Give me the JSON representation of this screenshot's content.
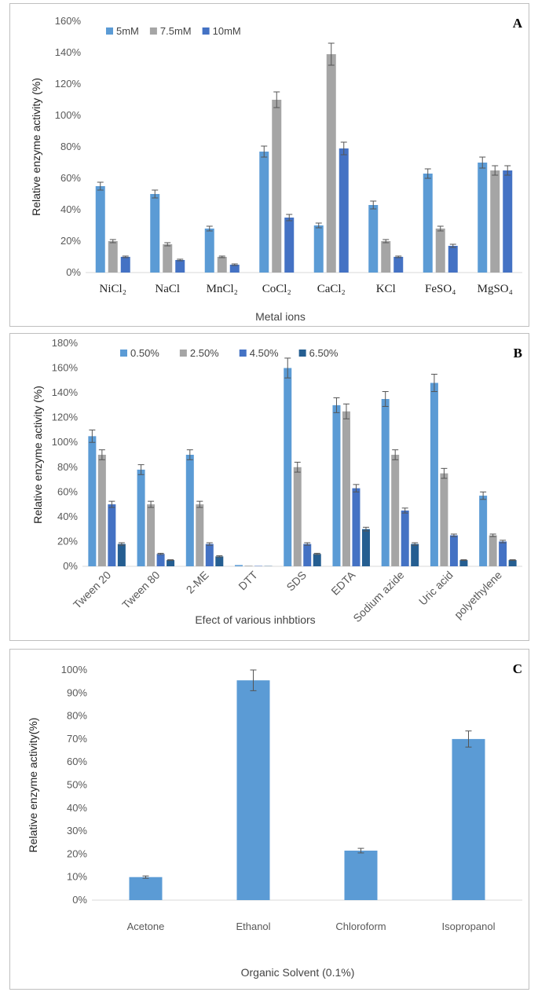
{
  "colors": {
    "light_blue": "#5b9bd5",
    "gray": "#a5a5a5",
    "blue": "#4472c4",
    "dark_blue": "#255e91",
    "axis": "#d9d9d9",
    "error": "#555555"
  },
  "chart_data": [
    {
      "id": "A",
      "panel_label": "A",
      "type": "bar",
      "title": "",
      "xlabel": "Metal ions",
      "ylabel": "Relative enzyme activity (%)",
      "ylim": [
        0,
        160
      ],
      "yticks": [
        0,
        20,
        40,
        60,
        80,
        100,
        120,
        140,
        160
      ],
      "ytick_labels": [
        "0%",
        "20%",
        "40%",
        "60%",
        "80%",
        "100%",
        "120%",
        "140%",
        "160%"
      ],
      "legend_position": "top-left",
      "categories": [
        "NiCl₂",
        "NaCl",
        "MnCl₂",
        "CoCl₂",
        "CaCl₂",
        "KCl",
        "FeSO₄",
        "MgSO₄"
      ],
      "series": [
        {
          "name": "5mM",
          "values": [
            55,
            50,
            28,
            77,
            30,
            43,
            63,
            70
          ],
          "errors": [
            2.5,
            2.5,
            1.5,
            3.5,
            1.5,
            2.5,
            3,
            3.5
          ]
        },
        {
          "name": "7.5mM",
          "values": [
            20,
            18,
            10,
            110,
            139,
            20,
            28,
            65
          ],
          "errors": [
            1,
            1,
            0.5,
            5,
            7,
            1,
            1.5,
            3
          ]
        },
        {
          "name": "10mM",
          "values": [
            10,
            8,
            5,
            35,
            79,
            10,
            17,
            65
          ],
          "errors": [
            0.5,
            0.5,
            0.5,
            2,
            4,
            0.5,
            1,
            3
          ]
        }
      ]
    },
    {
      "id": "B",
      "panel_label": "B",
      "type": "bar",
      "title": "",
      "xlabel": "Efect of various inhbtiors",
      "ylabel": "Relative enzyme activity (%)",
      "ylim": [
        0,
        180
      ],
      "yticks": [
        0,
        20,
        40,
        60,
        80,
        100,
        120,
        140,
        160,
        180
      ],
      "ytick_labels": [
        "0%",
        "20%",
        "40%",
        "60%",
        "80%",
        "100%",
        "120%",
        "140%",
        "160%",
        "180%"
      ],
      "legend_position": "top",
      "categories": [
        "Tween 20",
        "Tween 80",
        "2-ME",
        "DTT",
        "SDS",
        "EDTA",
        "Sodium azide",
        "Uric acid",
        "polyethylene"
      ],
      "series": [
        {
          "name": "0.50%",
          "values": [
            105,
            78,
            90,
            1,
            160,
            130,
            135,
            148,
            57
          ],
          "errors": [
            5,
            4,
            4,
            0,
            8,
            6,
            6,
            7,
            3
          ]
        },
        {
          "name": "2.50%",
          "values": [
            90,
            50,
            50,
            0.5,
            80,
            125,
            90,
            75,
            25
          ],
          "errors": [
            4,
            2.5,
            2.5,
            0,
            4,
            6,
            4,
            4,
            1
          ]
        },
        {
          "name": "4.50%",
          "values": [
            50,
            10,
            18,
            0.3,
            18,
            63,
            45,
            25,
            20
          ],
          "errors": [
            2.5,
            0.5,
            1,
            0,
            1,
            3,
            2,
            1,
            1
          ]
        },
        {
          "name": "6.50%",
          "values": [
            18,
            5,
            8,
            0.2,
            10,
            30,
            18,
            5,
            5
          ],
          "errors": [
            1,
            0.3,
            0.5,
            0,
            0.5,
            1.5,
            1,
            0.3,
            0.3
          ]
        }
      ]
    },
    {
      "id": "C",
      "panel_label": "C",
      "type": "bar",
      "title": "",
      "xlabel": "Organic Solvent (0.1%)",
      "ylabel": "Relative enzyme activity(%)",
      "ylim": [
        0,
        100
      ],
      "yticks": [
        0,
        10,
        20,
        30,
        40,
        50,
        60,
        70,
        80,
        90,
        100
      ],
      "ytick_labels": [
        "0%",
        "10%",
        "20%",
        "30%",
        "40%",
        "50%",
        "60%",
        "70%",
        "80%",
        "90%",
        "100%"
      ],
      "categories": [
        "Acetone",
        "Ethanol",
        "Chloroform",
        "Isopropanol"
      ],
      "series": [
        {
          "name": "Relative enzyme activity",
          "values": [
            10,
            95.5,
            21.5,
            70
          ],
          "errors": [
            0.5,
            4.5,
            1,
            3.5
          ]
        }
      ]
    }
  ]
}
